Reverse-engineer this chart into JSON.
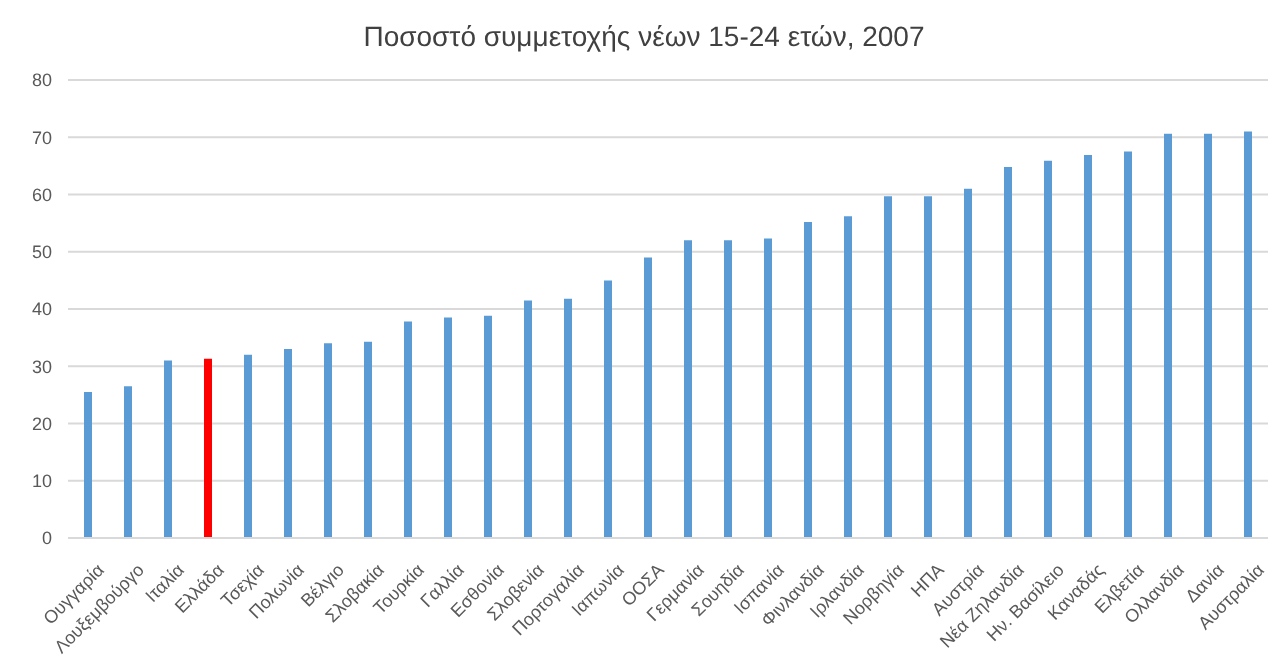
{
  "chart_data": {
    "type": "bar",
    "title": "Ποσοστό συμμετοχής νέων 15-24 ετών, 2007",
    "categories": [
      "Ουγγαρία",
      "Λουξεμβούργο",
      "Ιταλία",
      "Ελλάδα",
      "Τσεχία",
      "Πολωνία",
      "Βέλγιο",
      "Σλοβακία",
      "Τουρκία",
      "Γαλλία",
      "Εσθονία",
      "Σλοβενία",
      "Πορτογαλία",
      "Ιαπωνία",
      "ΟΟΣΑ",
      "Γερμανία",
      "Σουηδία",
      "Ισπανία",
      "Φινλανδία",
      "Ιρλανδία",
      "Νορβηγία",
      "ΗΠΑ",
      "Αυστρία",
      "Νέα Ζηλανδία",
      "Ην. Βασίλειο",
      "Καναδάς",
      "Ελβετία",
      "Ολλανδία",
      "Δανία",
      "Αυστραλία"
    ],
    "values": [
      25.5,
      26.5,
      31,
      31.3,
      32,
      33,
      34,
      34.3,
      37.8,
      38.5,
      38.8,
      41.5,
      41.8,
      45,
      49,
      52,
      52,
      52.3,
      55.2,
      56.2,
      59.7,
      59.7,
      61,
      64.8,
      65.9,
      66.9,
      67.5,
      70.6,
      70.6,
      71
    ],
    "colors": [
      "#5b9bd5",
      "#5b9bd5",
      "#5b9bd5",
      "#ff0000",
      "#5b9bd5",
      "#5b9bd5",
      "#5b9bd5",
      "#5b9bd5",
      "#5b9bd5",
      "#5b9bd5",
      "#5b9bd5",
      "#5b9bd5",
      "#5b9bd5",
      "#5b9bd5",
      "#5b9bd5",
      "#5b9bd5",
      "#5b9bd5",
      "#5b9bd5",
      "#5b9bd5",
      "#5b9bd5",
      "#5b9bd5",
      "#5b9bd5",
      "#5b9bd5",
      "#5b9bd5",
      "#5b9bd5",
      "#5b9bd5",
      "#5b9bd5",
      "#5b9bd5",
      "#5b9bd5",
      "#5b9bd5"
    ],
    "ylim": [
      0,
      80
    ],
    "yticks": [
      0,
      10,
      20,
      30,
      40,
      50,
      60,
      70,
      80
    ],
    "grid": "y",
    "legend": false
  }
}
